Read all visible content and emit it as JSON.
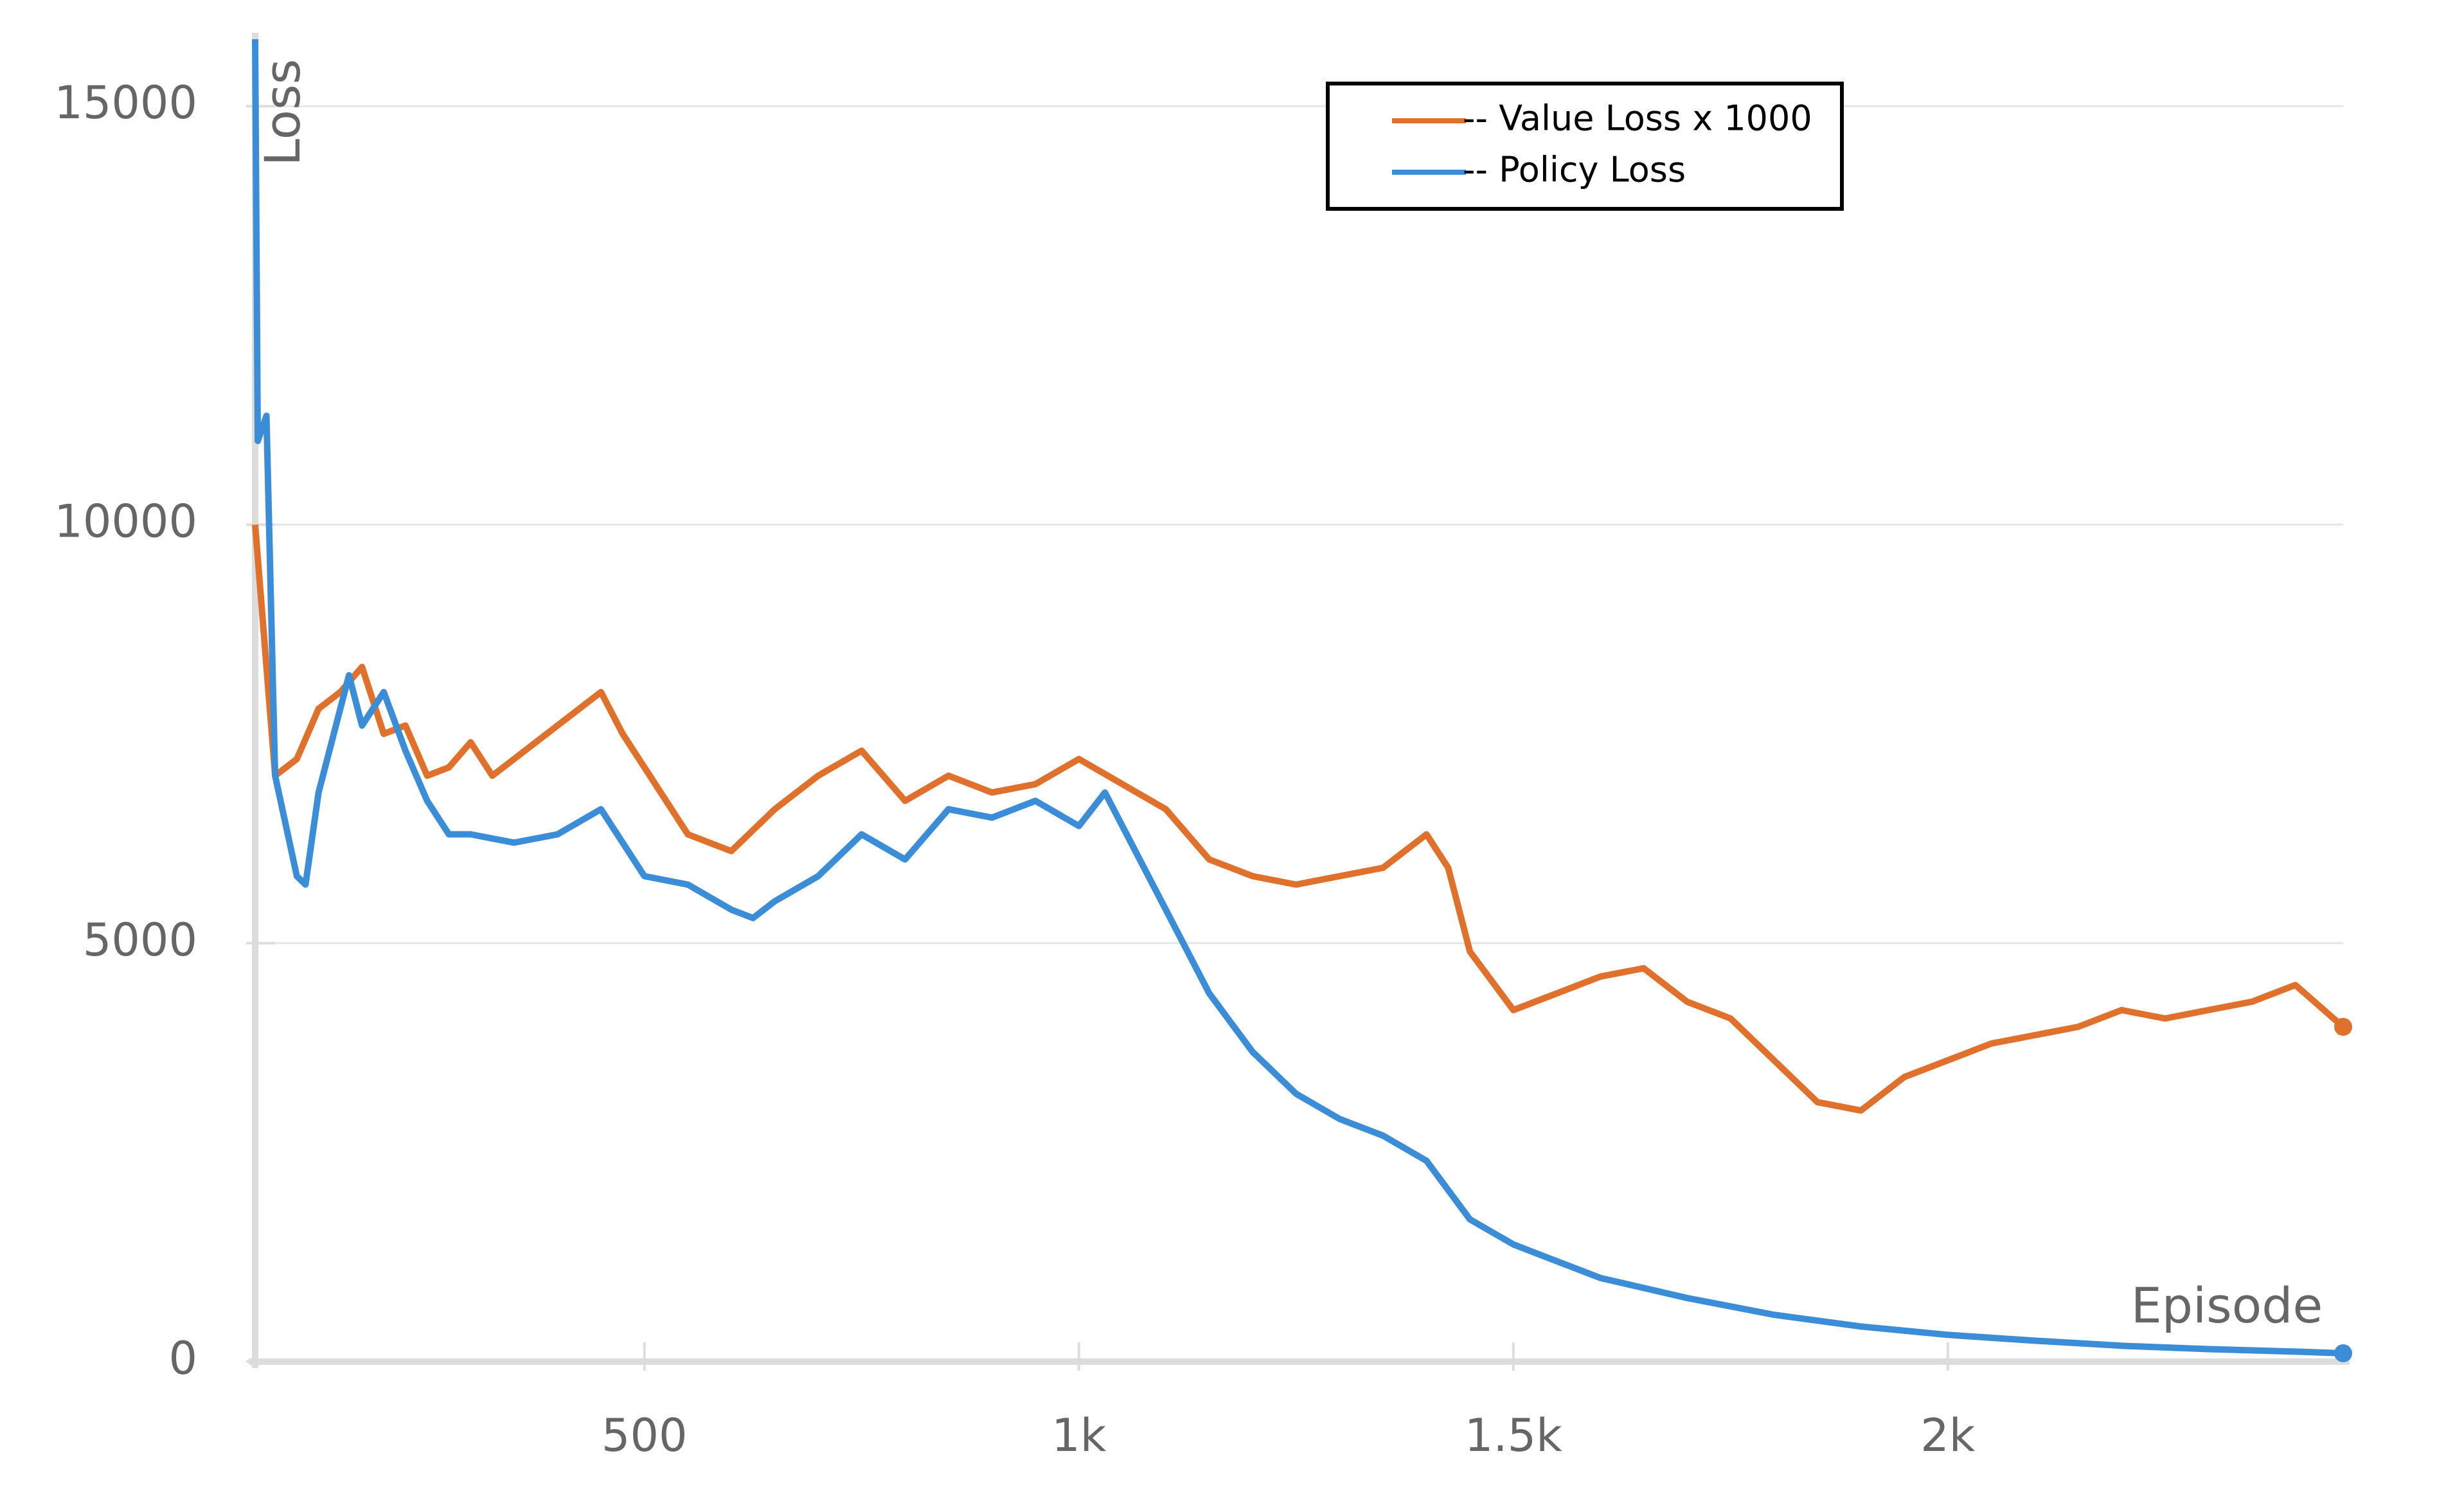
{
  "chart_data": {
    "type": "line",
    "x_label": "Episode",
    "y_label": "Loss",
    "xlim": [
      52,
      2455
    ],
    "ylim": [
      0,
      15800
    ],
    "xticks": [
      {
        "value": 500,
        "label": "500"
      },
      {
        "value": 1000,
        "label": "1k"
      },
      {
        "value": 1500,
        "label": "1.5k"
      },
      {
        "value": 2000,
        "label": "2k"
      }
    ],
    "yticks": [
      0,
      5000,
      10000,
      15000
    ],
    "grid": true,
    "legend": "upper right",
    "series": [
      {
        "name": "-- Value Loss x 1000",
        "color": "#e0712c",
        "x": [
          52,
          75,
          100,
          125,
          150,
          175,
          200,
          225,
          250,
          275,
          300,
          325,
          350,
          400,
          450,
          475,
          500,
          550,
          600,
          650,
          700,
          750,
          800,
          850,
          900,
          950,
          1000,
          1050,
          1100,
          1150,
          1200,
          1250,
          1300,
          1350,
          1400,
          1425,
          1450,
          1500,
          1550,
          1600,
          1650,
          1700,
          1750,
          1800,
          1850,
          1900,
          1950,
          2000,
          2050,
          2100,
          2150,
          2200,
          2250,
          2300,
          2350,
          2400,
          2455
        ],
        "values": [
          10000,
          7000,
          7200,
          7800,
          8000,
          8300,
          7500,
          7600,
          7000,
          7100,
          7400,
          7000,
          7200,
          7600,
          8000,
          7500,
          7100,
          6300,
          6100,
          6600,
          7000,
          7300,
          6700,
          7000,
          6800,
          6900,
          7200,
          6900,
          6600,
          6000,
          5800,
          5700,
          5800,
          5900,
          6300,
          5900,
          4900,
          4200,
          4400,
          4600,
          4700,
          4300,
          4100,
          3600,
          3100,
          3000,
          3400,
          3600,
          3800,
          3900,
          4000,
          4200,
          4100,
          4200,
          4300,
          4500,
          4000
        ]
      },
      {
        "name": "-- Policy Loss",
        "color": "#3a8dd6",
        "x": [
          52,
          55,
          65,
          75,
          100,
          110,
          125,
          150,
          160,
          175,
          200,
          225,
          250,
          275,
          300,
          350,
          400,
          450,
          500,
          550,
          600,
          625,
          650,
          700,
          750,
          800,
          850,
          900,
          950,
          1000,
          1030,
          1100,
          1150,
          1200,
          1250,
          1300,
          1350,
          1400,
          1450,
          1500,
          1550,
          1600,
          1700,
          1800,
          1900,
          2000,
          2100,
          2200,
          2300,
          2400,
          2455
        ],
        "values": [
          15800,
          11000,
          11300,
          7000,
          5800,
          5700,
          6800,
          7800,
          8200,
          7600,
          8000,
          7300,
          6700,
          6300,
          6300,
          6200,
          6300,
          6600,
          5800,
          5700,
          5400,
          5300,
          5500,
          5800,
          6300,
          6000,
          6600,
          6500,
          6700,
          6400,
          6800,
          5400,
          4400,
          3700,
          3200,
          2900,
          2700,
          2400,
          1700,
          1400,
          1200,
          1000,
          760,
          560,
          420,
          320,
          250,
          190,
          150,
          120,
          100
        ]
      }
    ]
  }
}
